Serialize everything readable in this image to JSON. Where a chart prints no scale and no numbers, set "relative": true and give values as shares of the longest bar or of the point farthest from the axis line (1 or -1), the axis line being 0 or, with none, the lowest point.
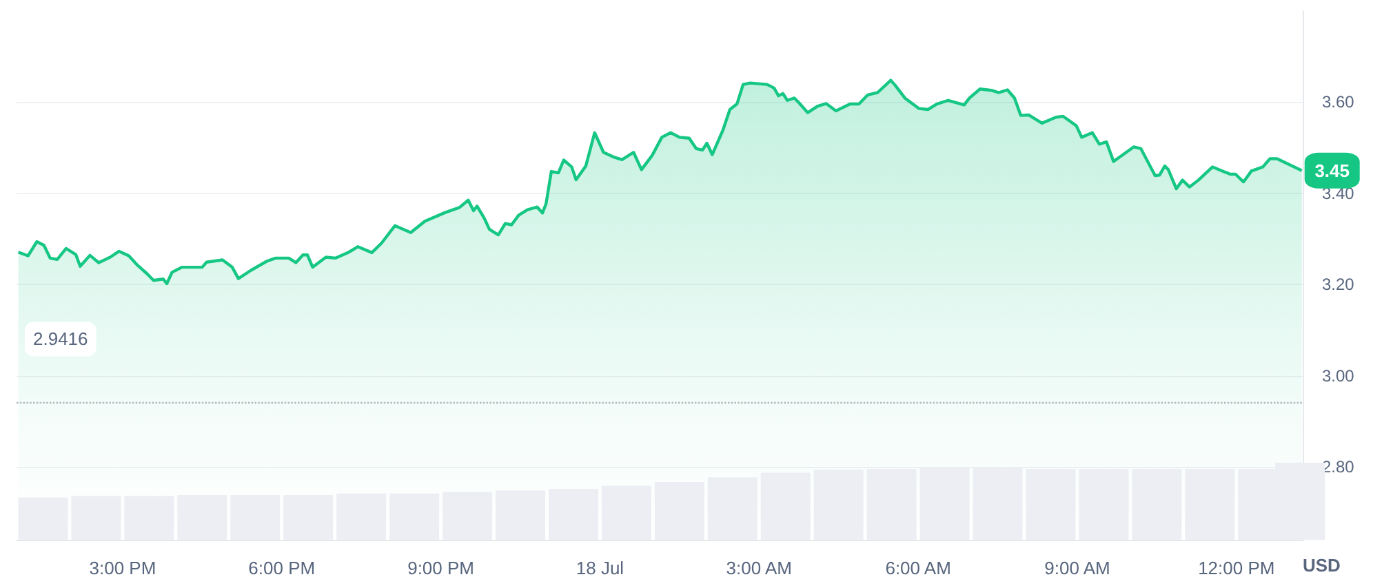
{
  "chart_data": [
    {
      "type": "area",
      "ylabel": "USD",
      "xlim": [
        "--07-17T13:00",
        "--07-18T13:15"
      ],
      "ylim": [
        2.64,
        3.8
      ],
      "xticks": [
        {
          "value": "--07-17T15:00",
          "label": "3:00 PM"
        },
        {
          "value": "--07-17T18:00",
          "label": "6:00 PM"
        },
        {
          "value": "--07-17T21:00",
          "label": "9:00 PM"
        },
        {
          "value": "--07-18T00:00",
          "label": "18 Jul"
        },
        {
          "value": "--07-18T03:00",
          "label": "3:00 AM"
        },
        {
          "value": "--07-18T06:00",
          "label": "6:00 AM"
        },
        {
          "value": "--07-18T09:00",
          "label": "9:00 AM"
        },
        {
          "value": "--07-18T12:00",
          "label": "12:00 PM"
        }
      ],
      "yticks": [
        {
          "value": 2.8,
          "label": "2.80"
        },
        {
          "value": 3.0,
          "label": "3.00"
        },
        {
          "value": 3.2,
          "label": "3.20"
        },
        {
          "value": 3.4,
          "label": "3.40"
        },
        {
          "value": 3.6,
          "label": "3.60"
        }
      ],
      "grid": "y",
      "ref_lines": [
        {
          "axis": "y",
          "value": 2.9416,
          "label": "2.9416",
          "color": "#b0b4bc",
          "line_style": "dotted"
        }
      ],
      "annotations": [
        {
          "text": "3.45",
          "x": "--07-18T13:14",
          "y": 3.45
        }
      ],
      "series": [
        {
          "color": "#16c784",
          "x": [
            "--07-17T13:02",
            "--07-17T13:13",
            "--07-17T13:23",
            "--07-17T13:31",
            "--07-17T13:38",
            "--07-17T13:46",
            "--07-17T13:56",
            "--07-17T14:07",
            "--07-17T14:12",
            "--07-17T14:23",
            "--07-17T14:33",
            "--07-17T14:46",
            "--07-17T14:56",
            "--07-17T15:07",
            "--07-17T15:17",
            "--07-17T15:28",
            "--07-17T15:35",
            "--07-17T15:46",
            "--07-17T15:50",
            "--07-17T15:56",
            "--07-17T16:07",
            "--07-17T16:30",
            "--07-17T16:35",
            "--07-17T16:53",
            "--07-17T17:04",
            "--07-17T17:11",
            "--07-17T17:25",
            "--07-17T17:43",
            "--07-17T17:53",
            "--07-17T18:08",
            "--07-17T18:16",
            "--07-17T18:24",
            "--07-17T18:29",
            "--07-17T18:35",
            "--07-17T18:50",
            "--07-17T19:01",
            "--07-17T19:16",
            "--07-17T19:26",
            "--07-17T19:42",
            "--07-17T19:53",
            "--07-17T20:08",
            "--07-17T20:26",
            "--07-17T20:42",
            "--07-17T21:05",
            "--07-17T21:21",
            "--07-17T21:31",
            "--07-17T21:37",
            "--07-17T21:41",
            "--07-17T21:49",
            "--07-17T21:55",
            "--07-17T22:05",
            "--07-17T22:13",
            "--07-17T22:20",
            "--07-17T22:28",
            "--07-17T22:38",
            "--07-17T22:49",
            "--07-17T22:55",
            "--07-17T22:59",
            "--07-17T23:05",
            "--07-17T23:13",
            "--07-17T23:19",
            "--07-17T23:28",
            "--07-17T23:33",
            "--07-17T23:44",
            "--07-17T23:54",
            "--07-18T00:04",
            "--07-18T00:15",
            "--07-18T00:25",
            "--07-18T00:38",
            "--07-18T00:47",
            "--07-18T00:59",
            "--07-18T01:10",
            "--07-18T01:20",
            "--07-18T01:30",
            "--07-18T01:41",
            "--07-18T01:49",
            "--07-18T01:56",
            "--07-18T02:01",
            "--07-18T02:07",
            "--07-18T02:19",
            "--07-18T02:27",
            "--07-18T02:35",
            "--07-18T02:42",
            "--07-18T02:50",
            "--07-18T03:09",
            "--07-18T03:17",
            "--07-18T03:22",
            "--07-18T03:27",
            "--07-18T03:32",
            "--07-18T03:40",
            "--07-18T03:45",
            "--07-18T03:55",
            "--07-18T04:06",
            "--07-18T04:16",
            "--07-18T04:27",
            "--07-18T04:43",
            "--07-18T04:53",
            "--07-18T05:03",
            "--07-18T05:14",
            "--07-18T05:29",
            "--07-18T05:34",
            "--07-18T05:45",
            "--07-18T06:01",
            "--07-18T06:11",
            "--07-18T06:21",
            "--07-18T06:34",
            "--07-18T06:52",
            "--07-18T06:58",
            "--07-18T07:10",
            "--07-18T07:23",
            "--07-18T07:31",
            "--07-18T07:41",
            "--07-18T07:49",
            "--07-18T07:56",
            "--07-18T08:05",
            "--07-18T08:20",
            "--07-18T08:36",
            "--07-18T08:44",
            "--07-18T08:52",
            "--07-18T08:59",
            "--07-18T09:05",
            "--07-18T09:17",
            "--07-18T09:25",
            "--07-18T09:33",
            "--07-18T09:41",
            "--07-18T09:54",
            "--07-18T10:04",
            "--07-18T10:12",
            "--07-18T10:28",
            "--07-18T10:33",
            "--07-18T10:39",
            "--07-18T10:43",
            "--07-18T10:52",
            "--07-18T10:59",
            "--07-18T11:07",
            "--07-18T11:17",
            "--07-18T11:33",
            "--07-18T11:53",
            "--07-18T11:59",
            "--07-18T12:08",
            "--07-18T12:17",
            "--07-18T12:30",
            "--07-18T12:38",
            "--07-18T12:46",
            "--07-18T13:14"
          ],
          "values": [
            3.271,
            3.263,
            3.294,
            3.286,
            3.258,
            3.255,
            3.279,
            3.266,
            3.24,
            3.264,
            3.248,
            3.26,
            3.273,
            3.263,
            3.242,
            3.223,
            3.209,
            3.212,
            3.202,
            3.227,
            3.238,
            3.238,
            3.249,
            3.254,
            3.238,
            3.213,
            3.231,
            3.251,
            3.258,
            3.258,
            3.248,
            3.265,
            3.265,
            3.238,
            3.26,
            3.258,
            3.271,
            3.283,
            3.27,
            3.291,
            3.329,
            3.314,
            3.339,
            3.358,
            3.369,
            3.385,
            3.362,
            3.372,
            3.346,
            3.321,
            3.309,
            3.334,
            3.331,
            3.352,
            3.364,
            3.37,
            3.357,
            3.377,
            3.448,
            3.445,
            3.473,
            3.458,
            3.43,
            3.46,
            3.533,
            3.49,
            3.48,
            3.474,
            3.49,
            3.452,
            3.483,
            3.523,
            3.533,
            3.523,
            3.521,
            3.498,
            3.495,
            3.51,
            3.485,
            3.538,
            3.584,
            3.596,
            3.639,
            3.642,
            3.639,
            3.631,
            3.614,
            3.619,
            3.604,
            3.609,
            3.599,
            3.577,
            3.591,
            3.597,
            3.581,
            3.596,
            3.596,
            3.616,
            3.621,
            3.648,
            3.637,
            3.609,
            3.586,
            3.584,
            3.596,
            3.604,
            3.594,
            3.609,
            3.629,
            3.626,
            3.621,
            3.627,
            3.609,
            3.571,
            3.572,
            3.554,
            3.567,
            3.569,
            3.558,
            3.548,
            3.523,
            3.533,
            3.508,
            3.513,
            3.47,
            3.488,
            3.502,
            3.498,
            3.439,
            3.44,
            3.46,
            3.452,
            3.41,
            3.429,
            3.414,
            3.429,
            3.458,
            3.442,
            3.442,
            3.425,
            3.449,
            3.458,
            3.476,
            3.476,
            3.45
          ]
        }
      ]
    },
    {
      "type": "bar",
      "relative": true,
      "xlim": [
        "--07-17T13:00",
        "--07-18T13:15"
      ],
      "tick_labels": false,
      "series": [
        {
          "color": "#eceef3",
          "x": [
            "--07-17T13:30",
            "--07-17T14:30",
            "--07-17T15:30",
            "--07-17T16:30",
            "--07-17T17:30",
            "--07-17T18:30",
            "--07-17T19:30",
            "--07-17T20:30",
            "--07-17T21:30",
            "--07-17T22:30",
            "--07-17T23:30",
            "--07-18T00:30",
            "--07-18T01:30",
            "--07-18T02:30",
            "--07-18T03:30",
            "--07-18T04:30",
            "--07-18T05:30",
            "--07-18T06:30",
            "--07-18T07:30",
            "--07-18T08:30",
            "--07-18T09:30",
            "--07-18T10:30",
            "--07-18T11:30",
            "--07-18T12:30",
            "--07-18T13:12"
          ],
          "values": [
            0.55,
            0.57,
            0.57,
            0.58,
            0.58,
            0.58,
            0.6,
            0.6,
            0.62,
            0.64,
            0.66,
            0.7,
            0.75,
            0.81,
            0.87,
            0.91,
            0.92,
            0.94,
            0.94,
            0.92,
            0.92,
            0.92,
            0.92,
            0.92,
            1
          ]
        }
      ]
    }
  ]
}
